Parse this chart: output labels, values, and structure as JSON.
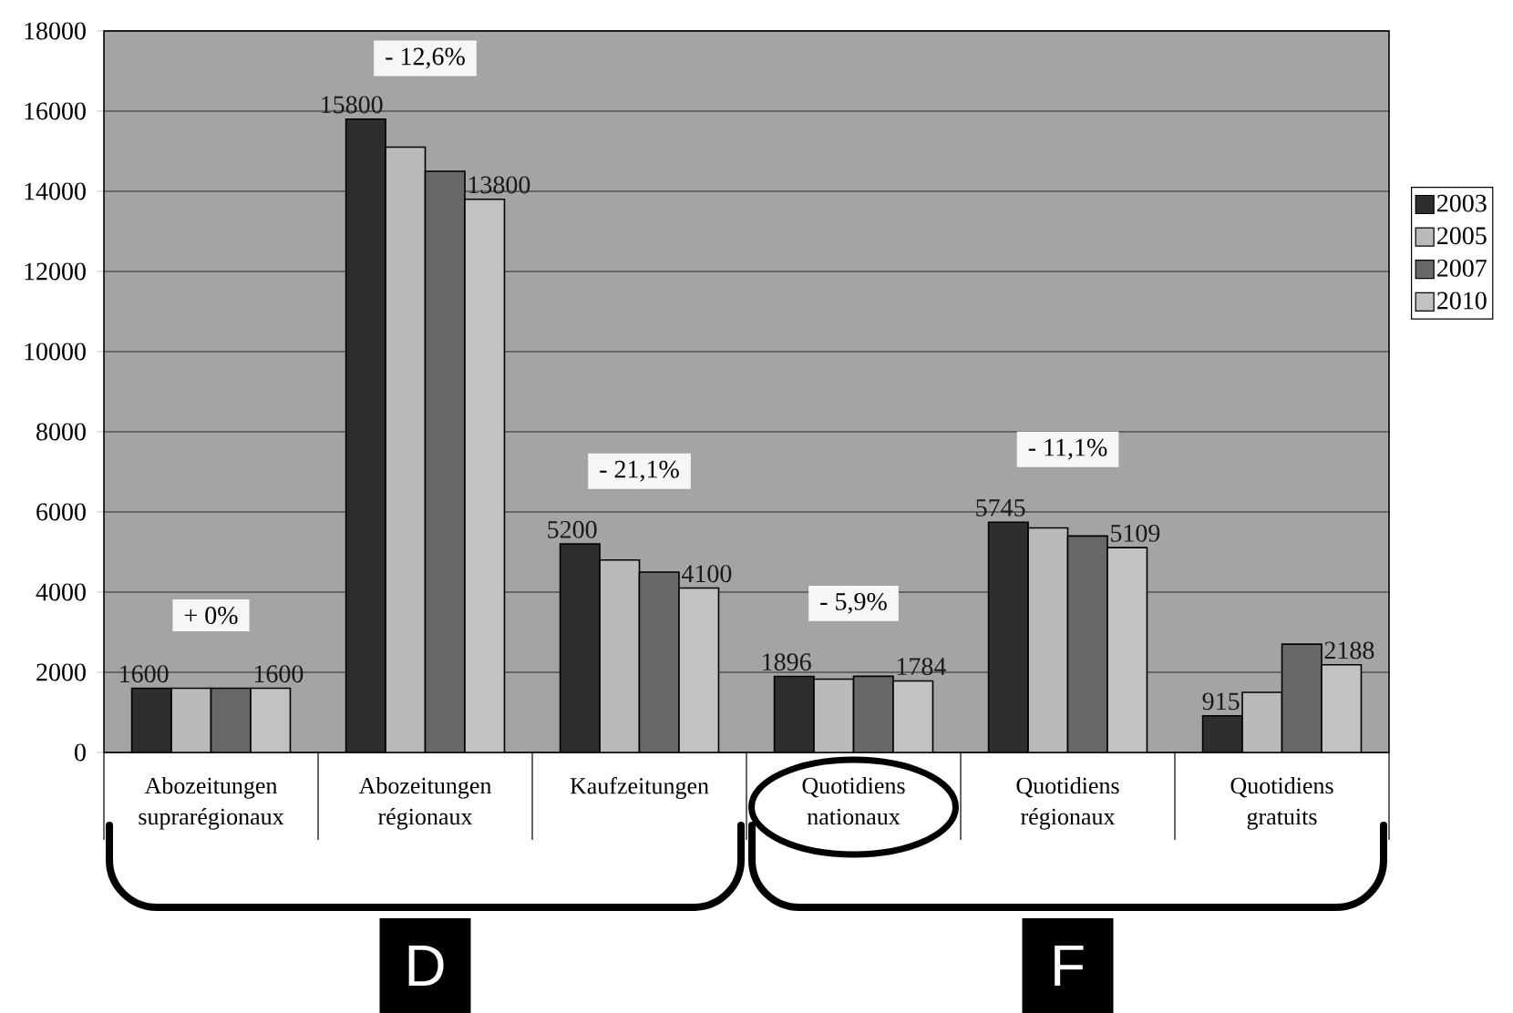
{
  "chart_data": {
    "type": "bar",
    "categories": [
      "Abozeitungen suprarégionaux",
      "Abozeitungen régionaux",
      "Kaufzeitungen",
      "Quotidiens nationaux",
      "Quotidiens régionaux",
      "Quotidiens gratuits"
    ],
    "series": [
      {
        "name": "2003",
        "color": "#2e2e2e",
        "values": [
          1600,
          15800,
          5200,
          1896,
          5745,
          915
        ],
        "value_labels": [
          "1600",
          "15800",
          "5200",
          "1896",
          "5745",
          "915"
        ]
      },
      {
        "name": "2005",
        "color": "#bababa",
        "values": [
          1600,
          15100,
          4800,
          1830,
          5600,
          1500
        ]
      },
      {
        "name": "2007",
        "color": "#686868",
        "values": [
          1600,
          14500,
          4500,
          1900,
          5400,
          2700
        ]
      },
      {
        "name": "2010",
        "color": "#c2c2c2",
        "values": [
          1600,
          13800,
          4100,
          1784,
          5109,
          2188
        ],
        "value_labels": [
          "1600",
          "13800",
          "4100",
          "1784",
          "5109",
          "2188"
        ]
      }
    ],
    "ylim": [
      0,
      18000
    ],
    "yticks": [
      0,
      2000,
      4000,
      6000,
      8000,
      10000,
      12000,
      14000,
      16000,
      18000
    ],
    "grid": "y",
    "legend": "right",
    "annotations": [
      "+ 0%",
      "- 12,6%",
      "- 21,1%",
      "- 5,9%",
      "- 11,1%",
      "D",
      "F"
    ]
  }
}
